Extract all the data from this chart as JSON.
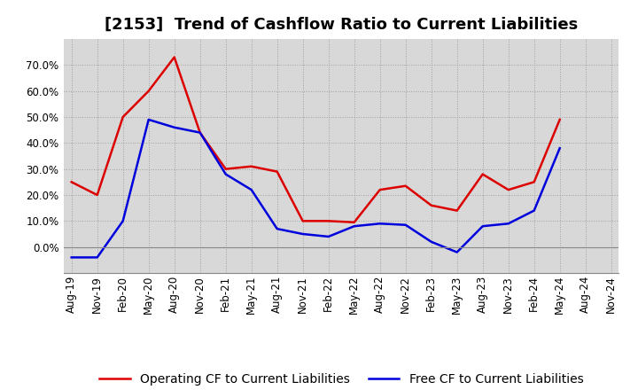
{
  "title": "[2153]  Trend of Cashflow Ratio to Current Liabilities",
  "x_labels": [
    "Aug-19",
    "Nov-19",
    "Feb-20",
    "May-20",
    "Aug-20",
    "Nov-20",
    "Feb-21",
    "May-21",
    "Aug-21",
    "Nov-21",
    "Feb-22",
    "May-22",
    "Aug-22",
    "Nov-22",
    "Feb-23",
    "May-23",
    "Aug-23",
    "Nov-23",
    "Feb-24",
    "May-24",
    "Aug-24",
    "Nov-24"
  ],
  "operating_cf": [
    0.25,
    0.2,
    0.5,
    0.6,
    0.73,
    0.44,
    0.3,
    0.31,
    0.29,
    0.1,
    0.1,
    0.095,
    0.22,
    0.235,
    0.16,
    0.14,
    0.28,
    0.22,
    0.25,
    0.49,
    null,
    null
  ],
  "free_cf": [
    -0.04,
    -0.04,
    0.1,
    0.49,
    0.46,
    0.44,
    0.28,
    0.22,
    0.07,
    0.05,
    0.04,
    0.08,
    0.09,
    0.085,
    0.02,
    -0.02,
    0.08,
    0.09,
    0.14,
    0.38,
    null,
    null
  ],
  "operating_color": "#dd0000",
  "free_color": "#0000dd",
  "ylim": [
    -0.1,
    0.8
  ],
  "yticks": [
    0.0,
    0.1,
    0.2,
    0.3,
    0.4,
    0.5,
    0.6,
    0.7
  ],
  "legend_operating": "Operating CF to Current Liabilities",
  "legend_free": "Free CF to Current Liabilities",
  "background_color": "#ffffff",
  "plot_bg_color": "#d8d8d8",
  "grid_color": "#999999",
  "title_fontsize": 13,
  "axis_fontsize": 8.5,
  "legend_fontsize": 10
}
